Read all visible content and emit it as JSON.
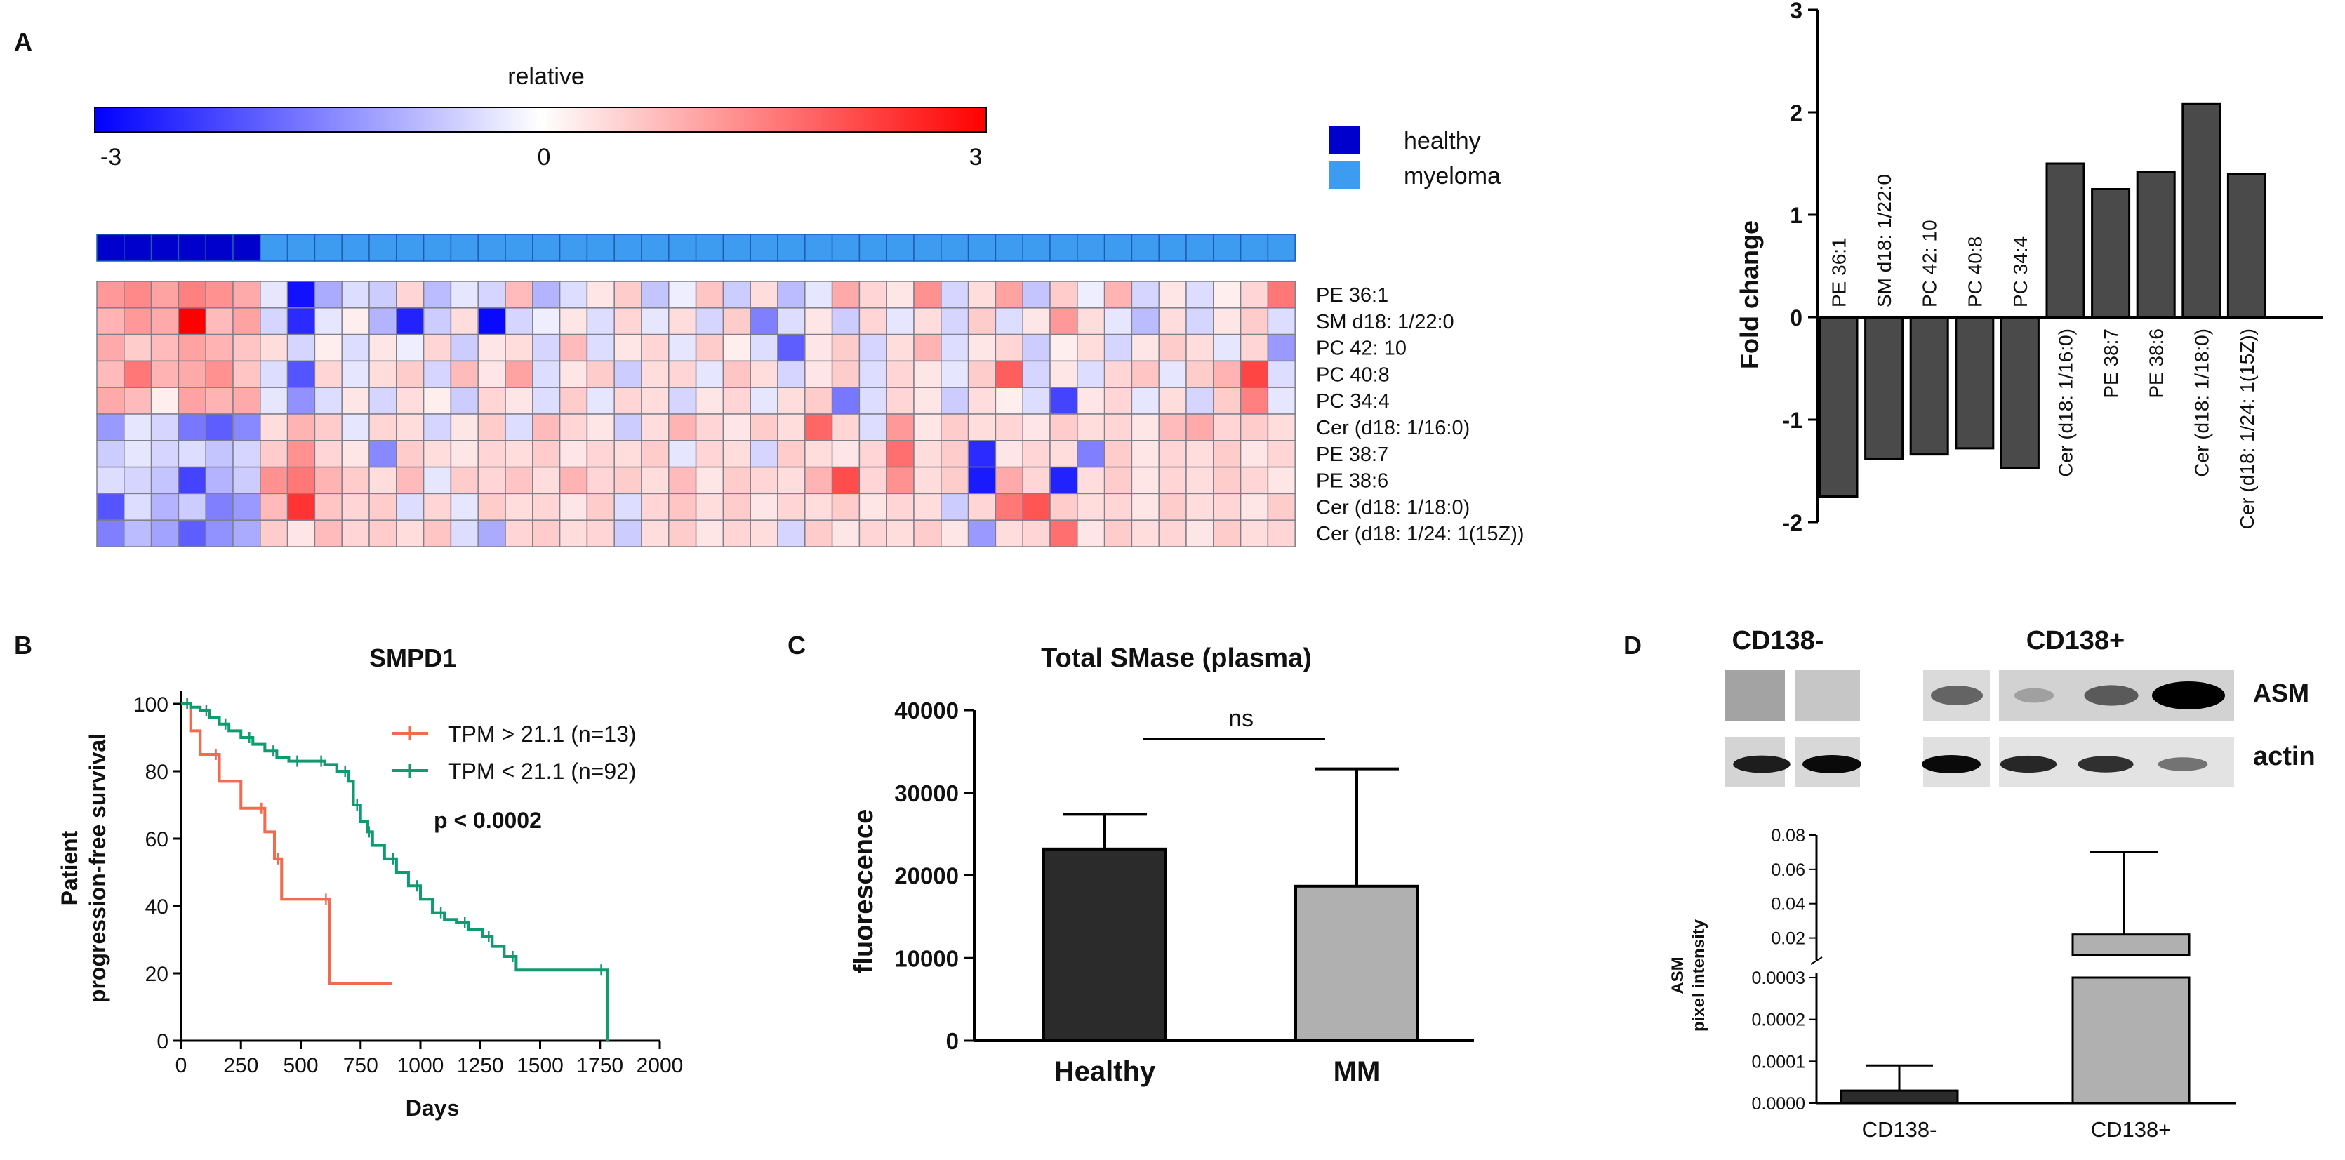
{
  "panel_labels": {
    "a": "A",
    "b": "B",
    "c": "C",
    "d": "D"
  },
  "colors": {
    "neg": "#0000ff",
    "mid": "#ffffff",
    "pos": "#ff0000",
    "healthy": "#0000cc",
    "myeloma": "#3d9bf0",
    "bar_dark": "#2b2b2b",
    "bar_grey": "#555555",
    "bar_light": "#b0b0b0",
    "km_high": "#f26b4f",
    "km_low": "#109a70",
    "grid": "#888888"
  },
  "panelA": {
    "colorbar": {
      "title": "relative",
      "ticks": [
        "-3",
        "0",
        "3"
      ],
      "min": -3,
      "max": 3
    },
    "legend": [
      {
        "label": "healthy",
        "color_key": "healthy"
      },
      {
        "label": "myeloma",
        "color_key": "myeloma"
      }
    ],
    "groups": {
      "healthy_count": 6,
      "myeloma_count": 38
    },
    "heatmap": {
      "rows": [
        "PE 36:1",
        "SM d18: 1/22:0",
        "PC 42: 10",
        "PC 40:8",
        "PC 34:4",
        "Cer (d18: 1/16:0)",
        "PE 38:7",
        "PE 38:6",
        "Cer (d18: 1/18:0)",
        "Cer (d18: 1/24: 1(15Z))"
      ],
      "values": [
        [
          1.2,
          1.4,
          1.1,
          1.5,
          1.3,
          1.0,
          -0.3,
          -2.8,
          -1.0,
          -0.4,
          -0.6,
          0.5,
          -0.8,
          -0.3,
          -0.5,
          0.8,
          -0.9,
          -0.4,
          0.3,
          0.6,
          -0.7,
          -0.2,
          0.7,
          -0.6,
          0.4,
          -0.8,
          -0.3,
          1.0,
          0.5,
          0.3,
          1.3,
          -0.5,
          0.4,
          1.1,
          -0.7,
          0.6,
          -0.2,
          0.9,
          -0.5,
          0.3,
          -0.4,
          0.2,
          0.5,
          1.6
        ],
        [
          0.9,
          1.2,
          1.0,
          3.0,
          0.8,
          1.1,
          -0.5,
          -2.5,
          -0.3,
          0.2,
          -0.9,
          -2.6,
          -0.6,
          0.4,
          -2.9,
          -0.5,
          -0.2,
          0.3,
          -0.4,
          0.5,
          -0.3,
          0.4,
          -0.5,
          0.6,
          -1.5,
          -0.4,
          0.3,
          -0.6,
          0.5,
          -0.3,
          0.4,
          -0.5,
          0.6,
          -0.4,
          0.3,
          1.2,
          0.4,
          -0.3,
          -0.8,
          0.4,
          -0.5,
          0.3,
          0.6,
          -0.4
        ],
        [
          1.0,
          0.6,
          0.8,
          1.1,
          0.9,
          0.7,
          0.4,
          -0.5,
          0.2,
          -0.4,
          0.3,
          -0.2,
          0.5,
          -0.6,
          0.3,
          0.4,
          -0.5,
          0.8,
          -0.4,
          0.3,
          0.5,
          -0.3,
          0.6,
          0.2,
          -0.4,
          -1.9,
          0.3,
          0.6,
          -0.5,
          0.4,
          0.9,
          -0.4,
          0.3,
          0.5,
          -0.6,
          0.2,
          0.4,
          -0.5,
          0.3,
          0.6,
          0.4,
          -0.3,
          0.5,
          -1.2
        ],
        [
          0.8,
          1.6,
          0.9,
          1.0,
          1.3,
          0.7,
          -0.4,
          -2.0,
          0.5,
          -0.3,
          0.4,
          0.6,
          -0.5,
          0.8,
          0.3,
          1.1,
          -0.4,
          0.3,
          0.6,
          -0.6,
          0.4,
          0.5,
          -0.3,
          0.7,
          0.4,
          -0.5,
          0.3,
          0.6,
          -0.4,
          0.5,
          0.3,
          -0.3,
          0.6,
          1.9,
          -0.5,
          0.3,
          -0.4,
          0.5,
          0.7,
          -0.3,
          0.6,
          0.9,
          2.2,
          -0.4
        ],
        [
          1.0,
          0.8,
          0.2,
          1.1,
          0.9,
          1.0,
          -0.3,
          -1.3,
          -0.4,
          0.3,
          -0.5,
          0.4,
          0.2,
          -0.6,
          0.5,
          0.3,
          -0.4,
          0.6,
          -0.3,
          0.5,
          0.4,
          -0.5,
          0.3,
          0.5,
          -0.3,
          0.4,
          0.6,
          -1.6,
          -0.4,
          0.5,
          0.3,
          -0.6,
          0.4,
          0.2,
          -0.4,
          -2.2,
          0.3,
          0.5,
          -0.3,
          0.4,
          -0.5,
          0.6,
          1.5,
          -0.3
        ],
        [
          -1.2,
          -0.3,
          -0.5,
          -1.6,
          -1.9,
          -1.4,
          0.4,
          0.9,
          0.6,
          -0.3,
          0.5,
          0.4,
          -0.5,
          0.3,
          0.6,
          -0.4,
          0.8,
          0.5,
          0.3,
          -0.6,
          0.4,
          0.9,
          0.5,
          0.3,
          0.6,
          0.4,
          1.8,
          0.5,
          -0.4,
          1.2,
          0.3,
          0.6,
          0.4,
          0.5,
          0.3,
          0.6,
          0.4,
          0.5,
          0.3,
          0.8,
          1.0,
          0.5,
          0.6,
          0.4
        ],
        [
          -0.6,
          -0.3,
          -0.5,
          -0.4,
          -0.7,
          -0.5,
          0.6,
          1.3,
          0.5,
          0.3,
          -1.4,
          0.6,
          0.4,
          0.3,
          0.5,
          0.4,
          0.6,
          0.3,
          0.5,
          0.4,
          0.6,
          -0.3,
          0.5,
          0.4,
          -0.5,
          0.6,
          0.4,
          0.3,
          0.5,
          1.7,
          0.4,
          0.6,
          -2.5,
          0.3,
          0.5,
          0.4,
          -1.5,
          0.6,
          0.3,
          0.5,
          0.4,
          0.6,
          0.3,
          0.5
        ],
        [
          -0.4,
          -0.5,
          -0.7,
          -2.2,
          -0.9,
          -0.6,
          1.3,
          1.6,
          0.9,
          0.6,
          0.4,
          0.8,
          -0.3,
          0.6,
          0.5,
          0.7,
          0.4,
          0.9,
          0.5,
          0.6,
          0.4,
          0.8,
          0.3,
          0.6,
          0.5,
          0.4,
          0.9,
          2.1,
          0.5,
          1.3,
          0.4,
          0.6,
          -2.7,
          1.0,
          0.5,
          -2.6,
          0.4,
          0.6,
          0.3,
          0.5,
          0.4,
          0.6,
          0.5,
          0.3
        ],
        [
          -2.0,
          -0.4,
          -0.9,
          -0.6,
          -1.5,
          -1.2,
          0.8,
          2.4,
          0.7,
          0.5,
          0.6,
          -0.4,
          0.5,
          -0.3,
          0.6,
          0.4,
          0.5,
          0.3,
          0.6,
          -0.4,
          0.5,
          0.7,
          0.4,
          0.6,
          0.3,
          0.5,
          0.4,
          0.6,
          0.3,
          0.5,
          0.4,
          -0.6,
          0.5,
          1.6,
          2.0,
          0.6,
          0.4,
          0.5,
          0.3,
          0.6,
          0.4,
          0.5,
          0.3,
          0.6
        ],
        [
          -1.5,
          -0.8,
          -1.1,
          -1.9,
          -1.3,
          -1.0,
          0.6,
          0.3,
          0.8,
          0.5,
          0.6,
          0.4,
          0.7,
          -0.4,
          -1.0,
          0.5,
          0.6,
          0.4,
          0.5,
          -0.6,
          0.4,
          0.6,
          0.3,
          0.5,
          0.4,
          -0.5,
          0.6,
          0.3,
          0.5,
          0.4,
          0.6,
          0.3,
          -1.2,
          0.4,
          0.5,
          1.7,
          0.3,
          0.6,
          0.4,
          0.5,
          0.3,
          0.6,
          0.4,
          0.5
        ]
      ]
    },
    "fold_change": {
      "type": "bar",
      "ylabel": "Fold change",
      "ylim": [
        -2,
        3
      ],
      "yticks": [
        "3",
        "2",
        "1",
        "0",
        "-1",
        "-2"
      ],
      "categories": [
        "PE 36:1",
        "SM d18: 1/22:0",
        "PC 42: 10",
        "PC 40:8",
        "PC 34:4",
        "Cer (d18: 1/16:0)",
        "PE 38:7",
        "PE 38:6",
        "Cer (d18: 1/18:0)",
        "Cer (d18: 1/24: 1(15Z))"
      ],
      "values": [
        -1.75,
        -1.38,
        -1.34,
        -1.28,
        -1.47,
        1.5,
        1.25,
        1.42,
        2.08,
        1.4
      ]
    }
  },
  "chart_data": [
    {
      "type": "line",
      "panel": "B",
      "title": "SMPD1",
      "xlabel": "Days",
      "ylabel_line1": "Patient",
      "ylabel_line2": "progression-free survival",
      "xlim": [
        0,
        2000
      ],
      "ylim": [
        0,
        100
      ],
      "xticks": [
        "0",
        "250",
        "500",
        "750",
        "1000",
        "1250",
        "1500",
        "1750",
        "2000"
      ],
      "yticks": [
        "100",
        "80",
        "60",
        "40",
        "20",
        "0"
      ],
      "annotation": "p < 0.0002",
      "series": [
        {
          "name": "TPM > 21.1 (n=13)",
          "color_key": "km_high",
          "x": [
            0,
            40,
            80,
            160,
            250,
            350,
            390,
            420,
            600,
            620,
            880
          ],
          "y": [
            100,
            92,
            85,
            77,
            69,
            62,
            54,
            42,
            42,
            17,
            17
          ]
        },
        {
          "name": "TPM < 21.1 (n=92)",
          "color_key": "km_low",
          "x": [
            0,
            40,
            80,
            120,
            160,
            200,
            250,
            300,
            350,
            400,
            450,
            500,
            550,
            600,
            650,
            700,
            720,
            750,
            780,
            800,
            850,
            900,
            950,
            1000,
            1050,
            1100,
            1150,
            1200,
            1260,
            1300,
            1350,
            1400,
            1500,
            1770,
            1780
          ],
          "y": [
            100,
            99,
            98,
            96,
            94,
            92,
            90,
            88,
            86,
            84,
            83,
            83,
            83,
            82,
            80,
            77,
            70,
            65,
            62,
            58,
            54,
            50,
            46,
            42,
            38,
            36,
            35,
            33,
            31,
            28,
            25,
            21,
            21,
            21,
            0
          ]
        }
      ]
    },
    {
      "type": "bar",
      "panel": "C",
      "title": "Total SMase (plasma)",
      "ylabel": "fluorescence",
      "xlabel": "",
      "ylim": [
        0,
        40000
      ],
      "yticks": [
        "40000",
        "30000",
        "20000",
        "10000",
        "0"
      ],
      "categories": [
        "Healthy",
        "MM"
      ],
      "values": [
        23200,
        18700
      ],
      "errors": [
        4200,
        14200
      ],
      "significance": "ns"
    },
    {
      "type": "bar",
      "panel": "D",
      "ylabel_line1": "ASM",
      "ylabel_line2": "pixel intensity",
      "axis_break": true,
      "ylim_lower": [
        0,
        0.0003
      ],
      "ylim_upper": [
        0.01,
        0.08
      ],
      "yticks_lower": [
        "0.0003",
        "0.0002",
        "0.0001",
        "0.0000"
      ],
      "yticks_upper": [
        "0.08",
        "0.06",
        "0.04",
        "0.02"
      ],
      "categories": [
        "CD138-",
        "CD138+"
      ],
      "values": [
        3e-05,
        0.022
      ],
      "errors": [
        6e-05,
        0.048
      ]
    }
  ],
  "panelD_blot": {
    "group_labels": [
      "CD138-",
      "CD138+"
    ],
    "row_labels": [
      "ASM",
      "actin"
    ],
    "asm_intensity": [
      0,
      0,
      0.5,
      0.2,
      0.55,
      1.0
    ],
    "actin_intensity": [
      0.9,
      1.0,
      1.0,
      0.85,
      0.8,
      0.45
    ]
  }
}
